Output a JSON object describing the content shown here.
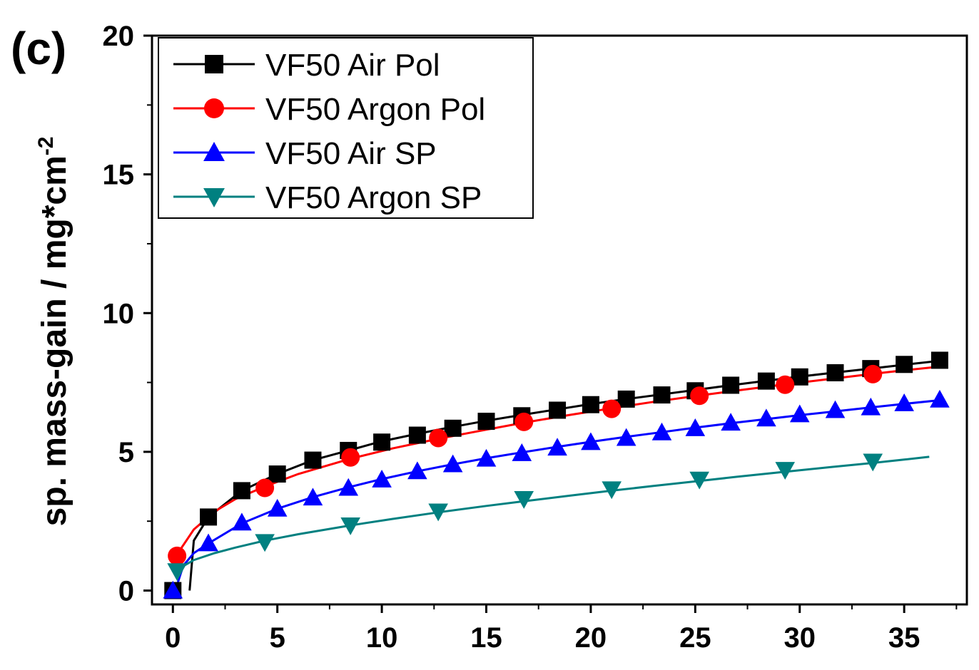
{
  "panel_label": "(c)",
  "chart_data": {
    "type": "scatter",
    "title": "",
    "xlabel": "",
    "ylabel": "sp. mass-gain / mg*cm",
    "ylabel_superscript": "-2",
    "xlim": [
      -1,
      38
    ],
    "ylim": [
      -0.5,
      20
    ],
    "x_ticks": [
      0,
      5,
      10,
      15,
      20,
      25,
      30,
      35
    ],
    "y_ticks": [
      0,
      5,
      10,
      15,
      20
    ],
    "x_tick_labels": [
      "0",
      "5",
      "10",
      "15",
      "20",
      "25",
      "30",
      "35"
    ],
    "y_tick_labels": [
      "0",
      "5",
      "10",
      "15",
      "20"
    ],
    "grid": false,
    "legend_position": "top-left",
    "series": [
      {
        "name": "VF50 Air Pol",
        "color": "#000000",
        "marker": "square",
        "points": [
          [
            0,
            0
          ],
          [
            1.7,
            2.65
          ],
          [
            3.3,
            3.6
          ],
          [
            5.0,
            4.2
          ],
          [
            6.7,
            4.7
          ],
          [
            8.4,
            5.05
          ],
          [
            10.0,
            5.35
          ],
          [
            11.7,
            5.6
          ],
          [
            13.4,
            5.85
          ],
          [
            15.0,
            6.1
          ],
          [
            16.7,
            6.3
          ],
          [
            18.4,
            6.5
          ],
          [
            20.0,
            6.7
          ],
          [
            21.7,
            6.9
          ],
          [
            23.4,
            7.05
          ],
          [
            25.0,
            7.2
          ],
          [
            26.7,
            7.4
          ],
          [
            28.4,
            7.55
          ],
          [
            30.0,
            7.7
          ],
          [
            31.7,
            7.85
          ],
          [
            33.4,
            8.0
          ],
          [
            35.0,
            8.15
          ],
          [
            36.7,
            8.3
          ]
        ],
        "fit": [
          [
            0.8,
            0
          ],
          [
            1.0,
            1.8
          ],
          [
            1.7,
            2.65
          ],
          [
            3.3,
            3.6
          ],
          [
            5.0,
            4.2
          ],
          [
            6.7,
            4.7
          ],
          [
            8.4,
            5.05
          ],
          [
            10.0,
            5.38
          ],
          [
            11.7,
            5.65
          ],
          [
            13.4,
            5.9
          ],
          [
            15.0,
            6.12
          ],
          [
            16.7,
            6.33
          ],
          [
            18.4,
            6.53
          ],
          [
            20.0,
            6.72
          ],
          [
            21.7,
            6.9
          ],
          [
            23.4,
            7.07
          ],
          [
            25.0,
            7.23
          ],
          [
            26.7,
            7.4
          ],
          [
            28.4,
            7.56
          ],
          [
            30.0,
            7.71
          ],
          [
            31.7,
            7.86
          ],
          [
            33.4,
            8.0
          ],
          [
            35.0,
            8.14
          ],
          [
            36.7,
            8.28
          ]
        ]
      },
      {
        "name": "VF50 Argon Pol",
        "color": "#ff0000",
        "marker": "circle",
        "points": [
          [
            0.2,
            1.25
          ],
          [
            4.4,
            3.7
          ],
          [
            8.5,
            4.8
          ],
          [
            12.7,
            5.5
          ],
          [
            16.8,
            6.08
          ],
          [
            21.0,
            6.55
          ],
          [
            25.2,
            7.02
          ],
          [
            29.3,
            7.42
          ],
          [
            33.5,
            7.8
          ]
        ],
        "fit": [
          [
            0.2,
            1.3
          ],
          [
            1.0,
            2.2
          ],
          [
            2.0,
            2.85
          ],
          [
            3.0,
            3.3
          ],
          [
            4.4,
            3.75
          ],
          [
            6.0,
            4.2
          ],
          [
            8.5,
            4.75
          ],
          [
            10.5,
            5.12
          ],
          [
            12.7,
            5.47
          ],
          [
            15.0,
            5.8
          ],
          [
            16.8,
            6.05
          ],
          [
            19.0,
            6.33
          ],
          [
            21.0,
            6.57
          ],
          [
            23.0,
            6.8
          ],
          [
            25.2,
            7.03
          ],
          [
            27.0,
            7.21
          ],
          [
            29.3,
            7.43
          ],
          [
            31.5,
            7.63
          ],
          [
            33.5,
            7.81
          ],
          [
            35.0,
            7.94
          ],
          [
            36.7,
            8.07
          ]
        ]
      },
      {
        "name": "VF50 Air SP",
        "color": "#0000ff",
        "marker": "triangle-up",
        "points": [
          [
            0,
            0
          ],
          [
            1.7,
            1.7
          ],
          [
            3.3,
            2.45
          ],
          [
            5.0,
            2.95
          ],
          [
            6.7,
            3.35
          ],
          [
            8.4,
            3.7
          ],
          [
            10.0,
            4.0
          ],
          [
            11.7,
            4.3
          ],
          [
            13.4,
            4.55
          ],
          [
            15.0,
            4.75
          ],
          [
            16.7,
            4.95
          ],
          [
            18.4,
            5.15
          ],
          [
            20.0,
            5.35
          ],
          [
            21.7,
            5.5
          ],
          [
            23.4,
            5.7
          ],
          [
            25.0,
            5.85
          ],
          [
            26.7,
            6.05
          ],
          [
            28.4,
            6.2
          ],
          [
            30.0,
            6.35
          ],
          [
            31.7,
            6.5
          ],
          [
            33.4,
            6.6
          ],
          [
            35.0,
            6.75
          ],
          [
            36.7,
            6.88
          ]
        ],
        "fit": [
          [
            0.2,
            0.2
          ],
          [
            0.5,
            0.9
          ],
          [
            1.0,
            1.35
          ],
          [
            1.7,
            1.7
          ],
          [
            3.3,
            2.42
          ],
          [
            5.0,
            2.95
          ],
          [
            6.7,
            3.37
          ],
          [
            8.4,
            3.72
          ],
          [
            10.0,
            4.02
          ],
          [
            11.7,
            4.3
          ],
          [
            13.4,
            4.55
          ],
          [
            15.0,
            4.77
          ],
          [
            16.7,
            4.98
          ],
          [
            18.4,
            5.18
          ],
          [
            20.0,
            5.36
          ],
          [
            21.7,
            5.54
          ],
          [
            23.4,
            5.71
          ],
          [
            25.0,
            5.87
          ],
          [
            26.7,
            6.03
          ],
          [
            28.4,
            6.18
          ],
          [
            30.0,
            6.32
          ],
          [
            31.7,
            6.46
          ],
          [
            33.4,
            6.6
          ],
          [
            35.0,
            6.73
          ],
          [
            36.7,
            6.86
          ]
        ]
      },
      {
        "name": "VF50 Argon SP",
        "color": "#008080",
        "marker": "triangle-down",
        "points": [
          [
            0.2,
            0.7
          ],
          [
            4.4,
            1.75
          ],
          [
            8.5,
            2.35
          ],
          [
            12.7,
            2.85
          ],
          [
            16.8,
            3.3
          ],
          [
            21.0,
            3.65
          ],
          [
            25.2,
            4.0
          ],
          [
            29.3,
            4.35
          ],
          [
            33.5,
            4.65
          ]
        ],
        "fit": [
          [
            0.2,
            0.75
          ],
          [
            1.0,
            1.1
          ],
          [
            2.0,
            1.35
          ],
          [
            3.0,
            1.55
          ],
          [
            4.4,
            1.8
          ],
          [
            6.0,
            2.03
          ],
          [
            8.5,
            2.35
          ],
          [
            10.5,
            2.58
          ],
          [
            12.7,
            2.82
          ],
          [
            15.0,
            3.05
          ],
          [
            16.8,
            3.22
          ],
          [
            19.0,
            3.42
          ],
          [
            21.0,
            3.6
          ],
          [
            23.0,
            3.77
          ],
          [
            25.2,
            3.95
          ],
          [
            27.0,
            4.1
          ],
          [
            29.3,
            4.28
          ],
          [
            31.5,
            4.45
          ],
          [
            33.5,
            4.6
          ],
          [
            35.0,
            4.72
          ],
          [
            36.2,
            4.82
          ]
        ]
      }
    ]
  }
}
